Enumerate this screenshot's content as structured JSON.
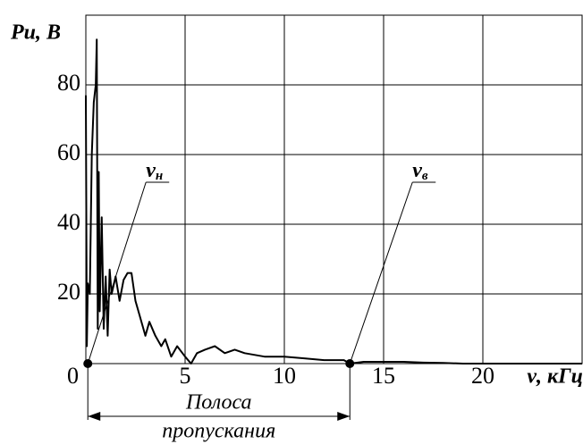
{
  "chart_data": {
    "type": "line",
    "x_label": "ν, кГц",
    "y_label": "Ри, В",
    "x": [
      0,
      0.05,
      0.1,
      0.2,
      0.3,
      0.4,
      0.5,
      0.55,
      0.6,
      0.65,
      0.7,
      0.8,
      0.9,
      1.0,
      1.1,
      1.2,
      1.3,
      1.5,
      1.7,
      1.9,
      2.1,
      2.3,
      2.5,
      2.7,
      3.0,
      3.2,
      3.5,
      3.8,
      4.0,
      4.3,
      4.6,
      5.0,
      5.3,
      5.6,
      6.0,
      6.5,
      7.0,
      7.5,
      8,
      9,
      10,
      11,
      12,
      13,
      13.3,
      14,
      15,
      16,
      17,
      18,
      19,
      20,
      25
    ],
    "values": [
      77,
      5,
      23,
      20,
      60,
      75,
      80,
      93,
      10,
      55,
      15,
      42,
      10,
      25,
      8,
      27,
      20,
      25,
      18,
      24,
      26,
      26,
      18,
      14,
      8,
      12,
      8,
      5,
      7,
      2,
      5,
      2,
      0,
      3,
      4,
      5,
      3,
      4,
      3,
      2,
      2,
      1.5,
      1,
      1,
      0,
      0.5,
      0.5,
      0.5,
      0.3,
      0.2,
      0,
      0,
      0
    ],
    "color": "#000000",
    "xlim": [
      0,
      25
    ],
    "xticks": [
      0,
      5,
      10,
      15,
      20
    ],
    "ylim": [
      0,
      100
    ],
    "yticks": [
      20,
      40,
      60,
      80
    ],
    "grid": true,
    "markers": [
      {
        "label": "ν",
        "subscript": "н",
        "x": 0.1,
        "y": 0
      },
      {
        "label": "ν",
        "subscript": "в",
        "x": 13.3,
        "y": 0
      }
    ],
    "band_label": [
      "Полоса",
      "пропускания"
    ]
  }
}
